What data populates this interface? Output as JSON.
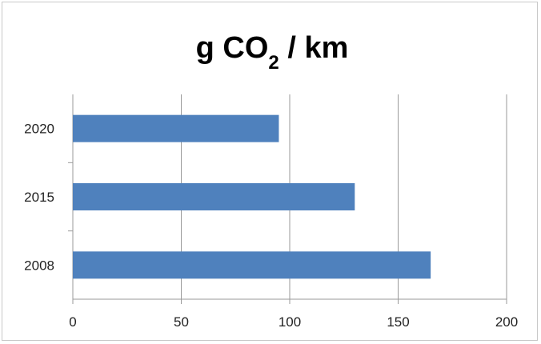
{
  "chart_data": {
    "type": "bar",
    "orientation": "horizontal",
    "title": {
      "prefix": "g CO",
      "subscript": "2",
      "suffix": " / km"
    },
    "categories": [
      "2020",
      "2015",
      "2008"
    ],
    "values": [
      95,
      130,
      165
    ],
    "xlim": [
      0,
      200
    ],
    "xticks": [
      "0",
      "50",
      "100",
      "150",
      "200"
    ],
    "grid": "vertical",
    "legend": "none",
    "bar_color": "#4f81bd"
  }
}
